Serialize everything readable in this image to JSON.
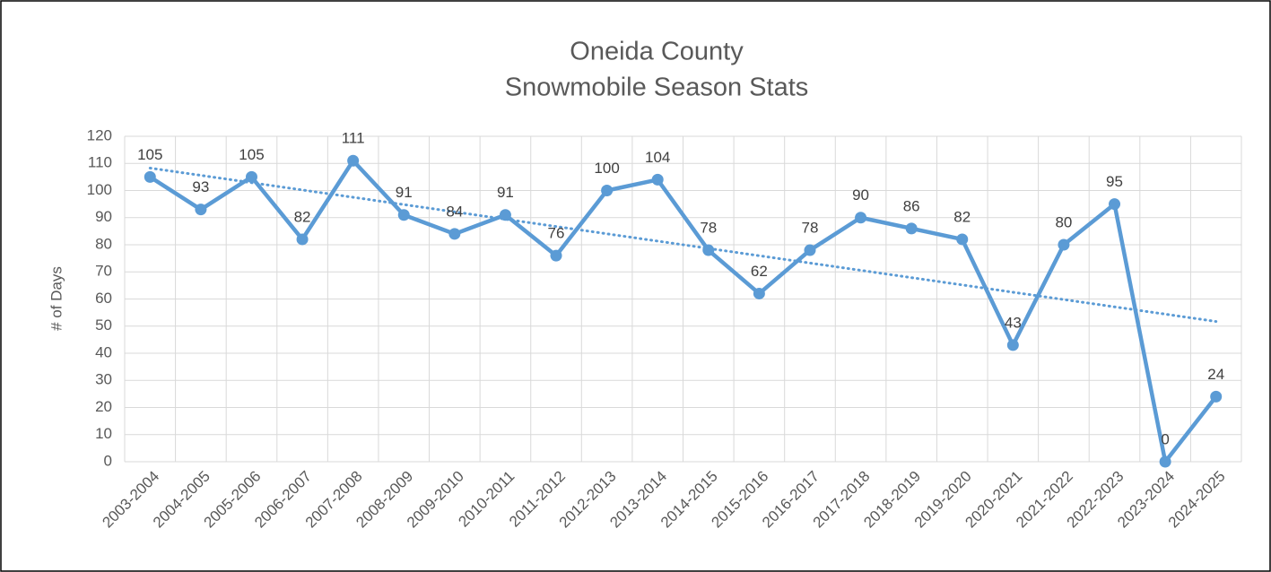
{
  "chart_data": {
    "type": "line",
    "title": [
      "Oneida County",
      "Snowmobile Season Stats"
    ],
    "y_label": "# of Days",
    "categories": [
      "2003-2004",
      "2004-2005",
      "2005-2006",
      "2006-2007",
      "2007-2008",
      "2008-2009",
      "2009-2010",
      "2010-2011",
      "2011-2012",
      "2012-2013",
      "2013-2014",
      "2014-2015",
      "2015-2016",
      "2016-2017",
      "2017-2018",
      "2018-2019",
      "2019-2020",
      "2020-2021",
      "2021-2022",
      "2022-2023",
      "2023-2024",
      "2024-2025"
    ],
    "values": [
      105,
      93,
      105,
      82,
      111,
      91,
      84,
      91,
      76,
      100,
      104,
      78,
      62,
      78,
      90,
      86,
      82,
      43,
      80,
      95,
      0,
      24
    ],
    "color": "#5b9bd5",
    "ylim": [
      0,
      120
    ],
    "yticks": [
      0,
      10,
      20,
      30,
      40,
      50,
      60,
      70,
      80,
      90,
      100,
      110,
      120
    ],
    "grid": true,
    "trendline": "linear",
    "data_labels": true
  }
}
